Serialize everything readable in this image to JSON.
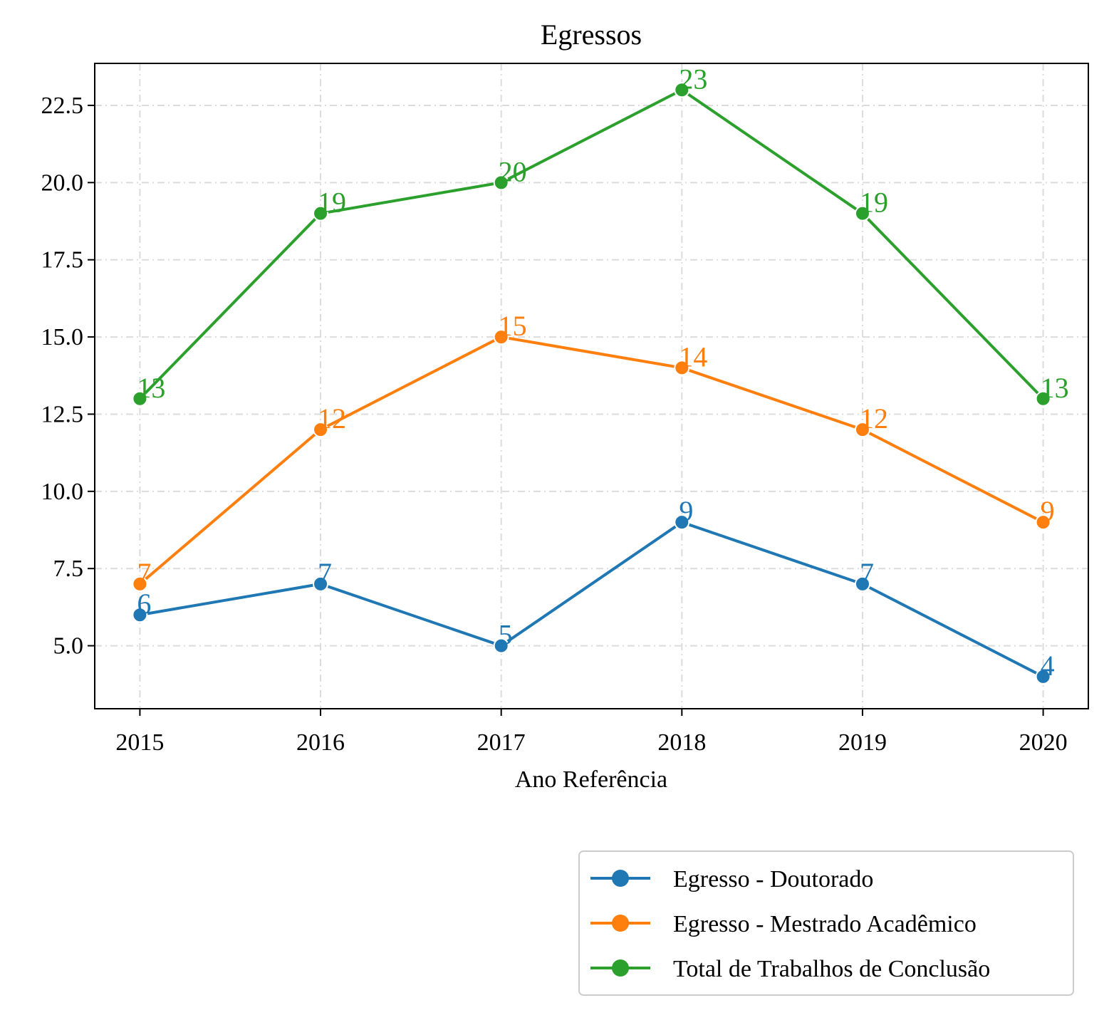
{
  "chart_data": {
    "type": "line",
    "title": "Egressos",
    "xlabel": "Ano Referência",
    "ylabel": "",
    "x": [
      2015,
      2016,
      2017,
      2018,
      2019,
      2020
    ],
    "xlim": [
      2014.75,
      2020.25
    ],
    "ylim": [
      2.96,
      23.86
    ],
    "yticks": [
      5.0,
      7.5,
      10.0,
      12.5,
      15.0,
      17.5,
      20.0,
      22.5
    ],
    "ytick_labels": [
      "5.0",
      "7.5",
      "10.0",
      "12.5",
      "15.0",
      "17.5",
      "20.0",
      "22.5"
    ],
    "grid": true,
    "legend_position": "below-right",
    "series": [
      {
        "name": "Egresso - Doutorado",
        "color": "#1f77b4",
        "values": [
          6,
          7,
          5,
          9,
          7,
          4
        ]
      },
      {
        "name": "Egresso - Mestrado Acadêmico",
        "color": "#ff7f0e",
        "values": [
          7,
          12,
          15,
          14,
          12,
          9
        ]
      },
      {
        "name": "Total de Trabalhos de Conclusão",
        "color": "#2ca02c",
        "values": [
          13,
          19,
          20,
          23,
          19,
          13
        ]
      }
    ]
  }
}
